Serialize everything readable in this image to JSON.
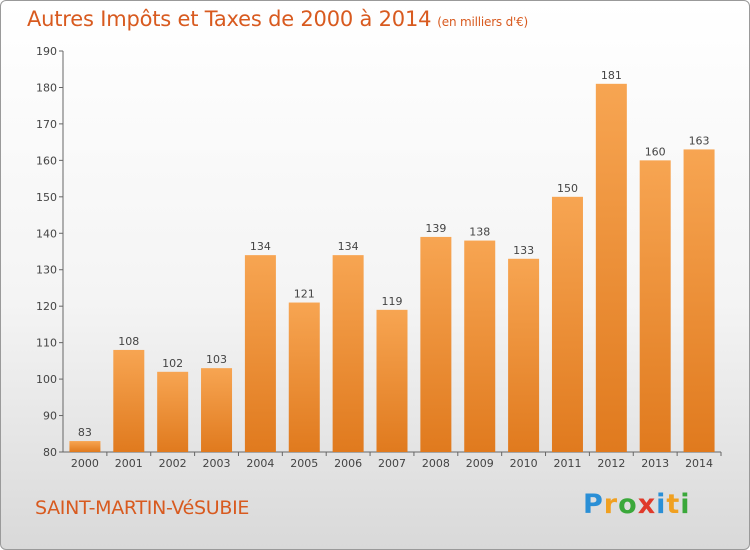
{
  "header": {
    "title": "Autres Impôts et Taxes de 2000 à 2014",
    "unit": "(en milliers d'€)"
  },
  "footer": {
    "commune": "SAINT-MARTIN-VéSUBIE"
  },
  "logo": {
    "letters": [
      "P",
      "r",
      "o",
      "x",
      "i",
      "t",
      "i"
    ],
    "colors": [
      "#2a8fd6",
      "#f0a020",
      "#3aa83a",
      "#e03a2a",
      "#2a8fd6",
      "#f0a020",
      "#3aa83a"
    ]
  },
  "colors": {
    "bar_light": "#f7a552",
    "bar_dark": "#e07a1e",
    "accent": "#d85a1f"
  },
  "chart_data": {
    "type": "bar",
    "title": "Autres Impôts et Taxes de 2000 à 2014",
    "subtitle": "(en milliers d'€)",
    "xlabel": "",
    "ylabel": "",
    "categories": [
      "2000",
      "2001",
      "2002",
      "2003",
      "2004",
      "2005",
      "2006",
      "2007",
      "2008",
      "2009",
      "2010",
      "2011",
      "2012",
      "2013",
      "2014"
    ],
    "values": [
      83,
      108,
      102,
      103,
      134,
      121,
      134,
      119,
      139,
      138,
      133,
      150,
      181,
      160,
      163
    ],
    "ylim": [
      80,
      190
    ],
    "yticks": [
      80,
      90,
      100,
      110,
      120,
      130,
      140,
      150,
      160,
      170,
      180,
      190
    ],
    "grid": false,
    "legend": "none"
  }
}
